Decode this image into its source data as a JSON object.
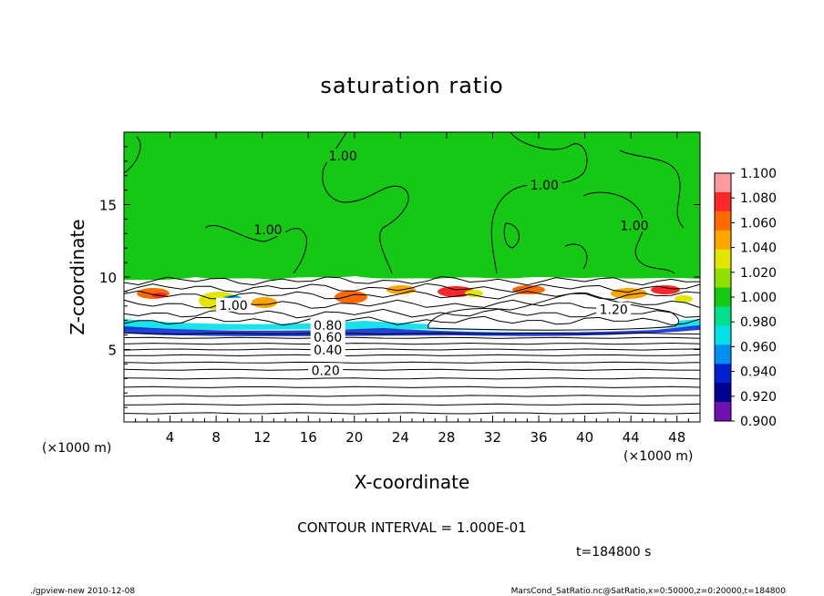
{
  "chart_data": {
    "type": "contour",
    "title": "saturation ratio",
    "xlabel": "X-coordinate",
    "ylabel": "Z-coordinate",
    "x_unit": "(×1000 m)",
    "y_unit": "(×1000 m)",
    "xlim": [
      0,
      50
    ],
    "ylim": [
      0,
      20
    ],
    "x_ticks": [
      4,
      8,
      12,
      16,
      20,
      24,
      28,
      32,
      36,
      40,
      44,
      48
    ],
    "y_ticks": [
      5,
      10,
      15
    ],
    "contour_interval_text": "CONTOUR INTERVAL = 1.000E-01",
    "time_text": "t=184800 s",
    "contour_labels": [
      {
        "text": "1.00",
        "x": 19,
        "z": 18.3
      },
      {
        "text": "1.00",
        "x": 36.5,
        "z": 16.3
      },
      {
        "text": "1.00",
        "x": 12.5,
        "z": 13.2
      },
      {
        "text": "1.00",
        "x": 44.3,
        "z": 13.5
      },
      {
        "text": "1.00",
        "x": 9.5,
        "z": 8.0
      },
      {
        "text": "1.20",
        "x": 42.5,
        "z": 7.7
      },
      {
        "text": "0.80",
        "x": 17.7,
        "z": 6.6
      },
      {
        "text": "0.60",
        "x": 17.7,
        "z": 5.8
      },
      {
        "text": "0.40",
        "x": 17.7,
        "z": 4.9
      },
      {
        "text": "0.20",
        "x": 17.5,
        "z": 3.5
      }
    ],
    "colorbar": {
      "levels": [
        "1.100",
        "1.080",
        "1.060",
        "1.040",
        "1.020",
        "1.000",
        "0.980",
        "0.960",
        "0.940",
        "0.920",
        "0.900"
      ],
      "colors": [
        "#ff9aa0",
        "#ff2828",
        "#ff6a00",
        "#ffa500",
        "#e2e600",
        "#90e000",
        "#14c814",
        "#00e08c",
        "#00e0e8",
        "#0090f0",
        "#0020d0",
        "#000090",
        "#7010b0"
      ]
    },
    "region_colors": {
      "above": "#14c814",
      "band_white": "#ffffff"
    }
  },
  "footer": {
    "left": "./gpview-new  2010-12-08",
    "right": "MarsCond_SatRatio.nc@SatRatio,x=0:50000,z=0:20000,t=184800"
  }
}
